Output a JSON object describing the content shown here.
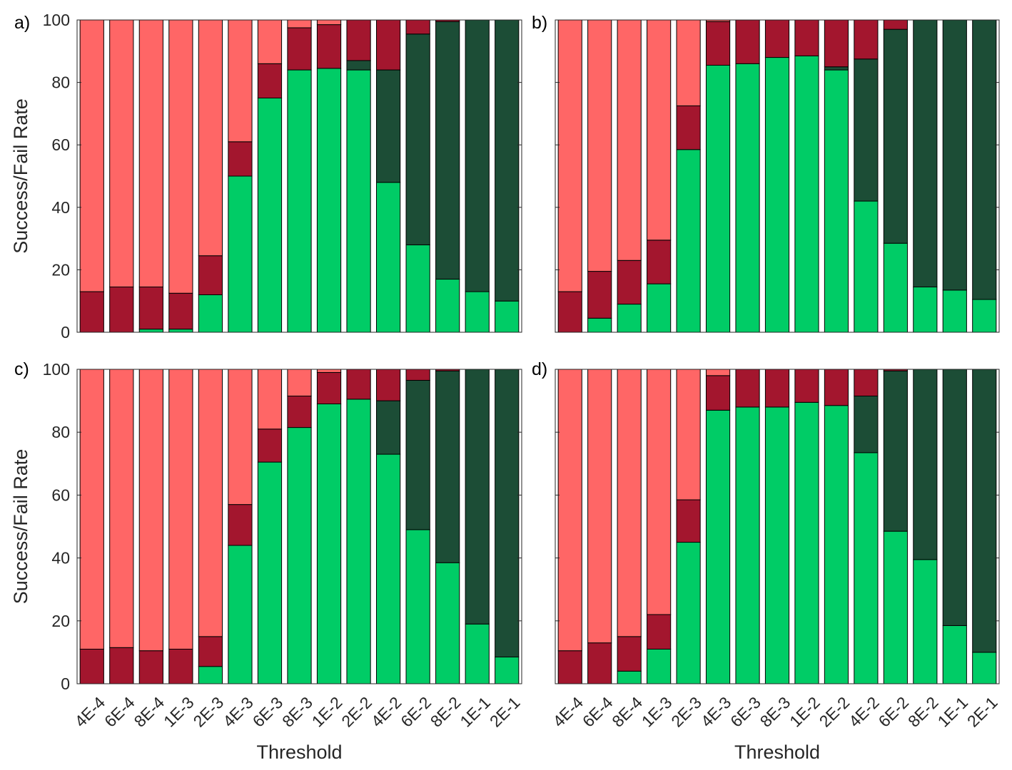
{
  "figure": {
    "xlabel": "Threshold",
    "ylabel": "Success/Fail Rate",
    "colors": {
      "success": "#00cc66",
      "success_dark": "#1c4d36",
      "fail_dark": "#a3162e",
      "fail_light": "#ff6666"
    }
  },
  "chart_data": [
    {
      "type": "bar",
      "stacked": true,
      "panel": "a)",
      "title": "",
      "xlabel": "",
      "ylabel": "Success/Fail Rate",
      "ylim": [
        0,
        100
      ],
      "yticks": [
        0,
        20,
        40,
        60,
        80,
        100
      ],
      "categories": [
        "4E-4",
        "6E-4",
        "8E-4",
        "1E-3",
        "2E-3",
        "4E-3",
        "6E-3",
        "8E-3",
        "1E-2",
        "2E-2",
        "4E-2",
        "6E-2",
        "8E-2",
        "1E-1",
        "2E-1"
      ],
      "series": [
        {
          "name": "green",
          "values": [
            0,
            0,
            1,
            1,
            12,
            50,
            75,
            84,
            84.5,
            84,
            48,
            28,
            17,
            13,
            10
          ]
        },
        {
          "name": "dark green",
          "values": [
            0,
            0,
            0,
            0,
            0,
            0,
            0,
            0,
            0,
            3,
            36,
            67.5,
            82.5,
            87,
            90
          ]
        },
        {
          "name": "dark red",
          "values": [
            13,
            14.5,
            13.5,
            11.5,
            12.5,
            11,
            11,
            13.5,
            14,
            13,
            16,
            4.5,
            0.5,
            0,
            0
          ]
        },
        {
          "name": "light red",
          "values": [
            87,
            85.5,
            85.5,
            87.5,
            75.5,
            39,
            14,
            2.5,
            1.5,
            0,
            0,
            0,
            0,
            0,
            0
          ]
        }
      ]
    },
    {
      "type": "bar",
      "stacked": true,
      "panel": "b)",
      "title": "",
      "xlabel": "",
      "ylabel": "",
      "ylim": [
        0,
        100
      ],
      "yticks": [],
      "categories": [
        "4E-4",
        "6E-4",
        "8E-4",
        "1E-3",
        "2E-3",
        "4E-3",
        "6E-3",
        "8E-3",
        "1E-2",
        "2E-2",
        "4E-2",
        "6E-2",
        "8E-2",
        "1E-1",
        "2E-1"
      ],
      "series": [
        {
          "name": "green",
          "values": [
            0,
            4.5,
            9,
            15.5,
            58.5,
            85.5,
            86,
            88,
            88.5,
            84,
            42,
            28.5,
            14.5,
            13.5,
            10.5
          ]
        },
        {
          "name": "dark green",
          "values": [
            0,
            0,
            0,
            0,
            0,
            0,
            0,
            0,
            0,
            1,
            45.5,
            68.5,
            85.5,
            86.5,
            89.5
          ]
        },
        {
          "name": "dark red",
          "values": [
            13,
            15,
            14,
            14,
            14,
            14,
            14,
            12,
            11.5,
            15,
            12.5,
            3,
            0,
            0,
            0
          ]
        },
        {
          "name": "light red",
          "values": [
            87,
            80.5,
            77,
            70.5,
            27.5,
            0.5,
            0,
            0,
            0,
            0,
            0,
            0,
            0,
            0,
            0
          ]
        }
      ]
    },
    {
      "type": "bar",
      "stacked": true,
      "panel": "c)",
      "title": "",
      "xlabel": "Threshold",
      "ylabel": "Success/Fail Rate",
      "ylim": [
        0,
        100
      ],
      "yticks": [
        0,
        20,
        40,
        60,
        80,
        100
      ],
      "categories": [
        "4E-4",
        "6E-4",
        "8E-4",
        "1E-3",
        "2E-3",
        "4E-3",
        "6E-3",
        "8E-3",
        "1E-2",
        "2E-2",
        "4E-2",
        "6E-2",
        "8E-2",
        "1E-1",
        "2E-1"
      ],
      "series": [
        {
          "name": "green",
          "values": [
            0,
            0,
            0,
            0,
            5.5,
            44,
            70.5,
            81.5,
            89,
            90.5,
            73,
            49,
            38.5,
            19,
            8.5
          ]
        },
        {
          "name": "dark green",
          "values": [
            0,
            0,
            0,
            0,
            0,
            0,
            0,
            0,
            0,
            0,
            17,
            47.5,
            61,
            81,
            91.5
          ]
        },
        {
          "name": "dark red",
          "values": [
            11,
            11.5,
            10.5,
            11,
            9.5,
            13,
            10.5,
            10,
            10,
            9.5,
            10,
            3.5,
            0.5,
            0,
            0
          ]
        },
        {
          "name": "light red",
          "values": [
            89,
            88.5,
            89.5,
            89,
            85,
            43,
            19,
            8.5,
            1,
            0,
            0,
            0,
            0,
            0,
            0
          ]
        }
      ]
    },
    {
      "type": "bar",
      "stacked": true,
      "panel": "d)",
      "title": "",
      "xlabel": "Threshold",
      "ylabel": "",
      "ylim": [
        0,
        100
      ],
      "yticks": [],
      "categories": [
        "4E-4",
        "6E-4",
        "8E-4",
        "1E-3",
        "2E-3",
        "4E-3",
        "6E-3",
        "8E-3",
        "1E-2",
        "2E-2",
        "4E-2",
        "6E-2",
        "8E-2",
        "1E-1",
        "2E-1"
      ],
      "series": [
        {
          "name": "green",
          "values": [
            0,
            0,
            4,
            11,
            45,
            87,
            88,
            88,
            89.5,
            88.5,
            73.5,
            48.5,
            39.5,
            18.5,
            10
          ]
        },
        {
          "name": "dark green",
          "values": [
            0,
            0,
            0,
            0,
            0,
            0,
            0,
            0,
            0,
            0,
            18,
            51,
            60.5,
            81.5,
            90
          ]
        },
        {
          "name": "dark red",
          "values": [
            10.5,
            13,
            11,
            11,
            13.5,
            11,
            12,
            12,
            10.5,
            11.5,
            8.5,
            0.5,
            0,
            0,
            0
          ]
        },
        {
          "name": "light red",
          "values": [
            89.5,
            87,
            85,
            78,
            41.5,
            2,
            0,
            0,
            0,
            0,
            0,
            0,
            0,
            0,
            0
          ]
        }
      ]
    }
  ]
}
